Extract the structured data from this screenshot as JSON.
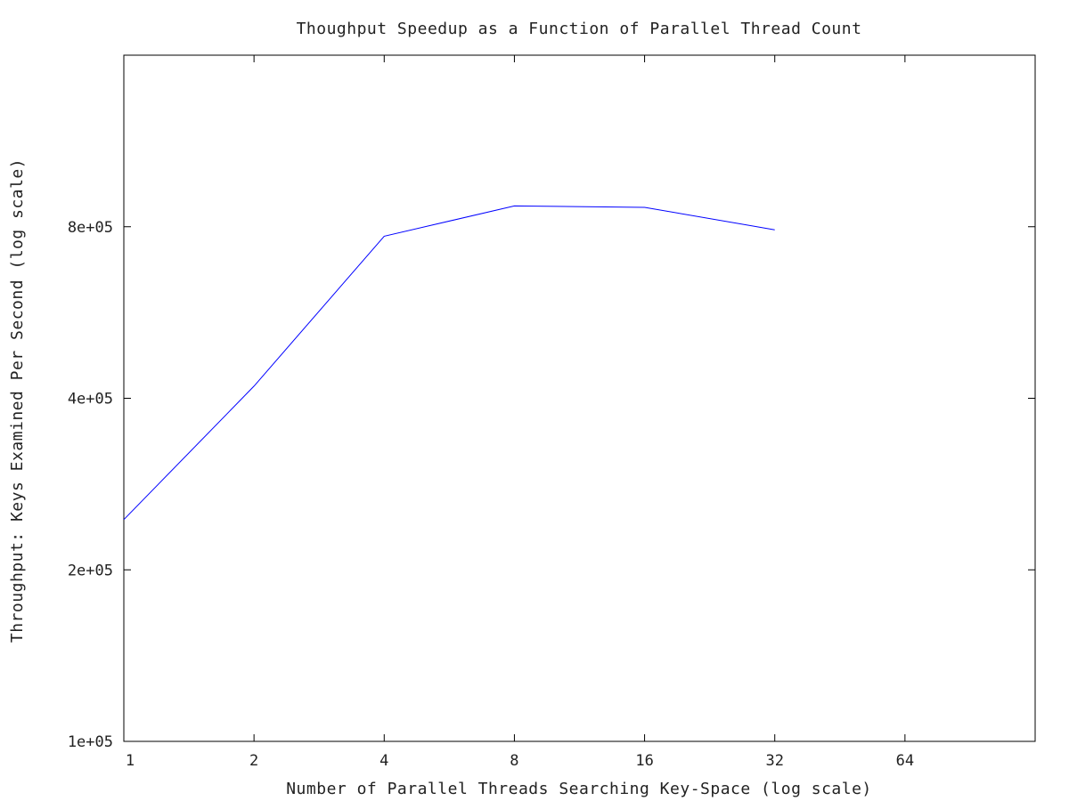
{
  "chart_data": {
    "type": "line",
    "title": "Thoughput Speedup as a Function of Parallel Thread Count",
    "xlabel": "Number of Parallel Threads Searching Key-Space (log scale)",
    "ylabel": "Throughput: Keys Examined Per Second (log scale)",
    "x_scale": "log",
    "y_scale": "log",
    "xlim": [
      1,
      128
    ],
    "ylim": [
      100000,
      1600000
    ],
    "x_ticks": [
      1,
      2,
      4,
      8,
      16,
      32,
      64
    ],
    "x_tick_labels": [
      "1",
      "2",
      "4",
      "8",
      "16",
      "32",
      "64"
    ],
    "y_ticks": [
      100000,
      200000,
      400000,
      800000
    ],
    "y_tick_labels": [
      "1e+05",
      "2e+05",
      "4e+05",
      "8e+05"
    ],
    "grid": false,
    "legend": "none",
    "series": [
      {
        "color": "#0000ff",
        "x": [
          1,
          2,
          4,
          8,
          16,
          32
        ],
        "y": [
          245000,
          420000,
          770000,
          870000,
          865000,
          790000
        ]
      }
    ]
  }
}
